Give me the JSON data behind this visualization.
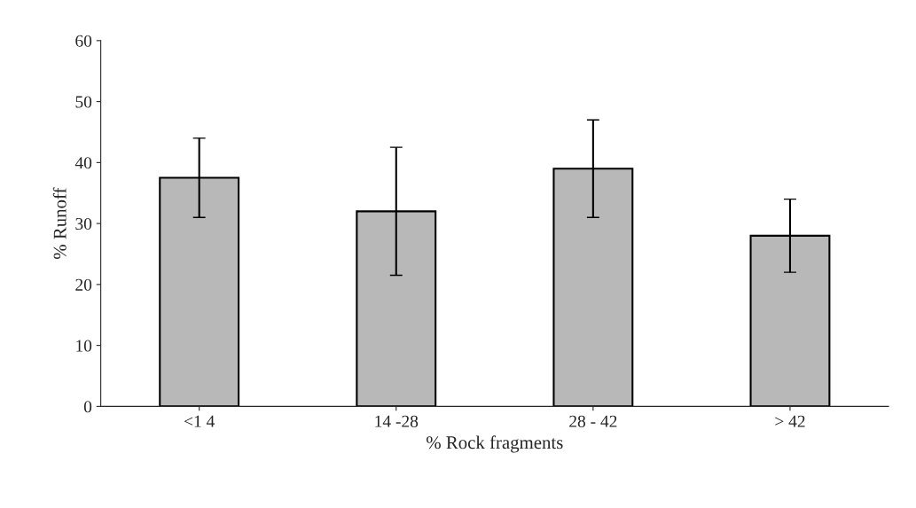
{
  "chart_data": {
    "type": "bar",
    "xlabel": "% Rock fragments",
    "ylabel": "% Runoff",
    "categories": [
      "<1 4",
      "14 -28",
      "28 - 42",
      "> 42"
    ],
    "values": [
      37.5,
      32,
      39,
      28
    ],
    "errors": [
      6.5,
      10.5,
      8,
      6
    ],
    "color": "#b8b8b8",
    "ylim": [
      0,
      60
    ],
    "yticks": [
      0,
      10,
      20,
      30,
      40,
      50,
      60
    ],
    "grid": false,
    "legend": false
  }
}
